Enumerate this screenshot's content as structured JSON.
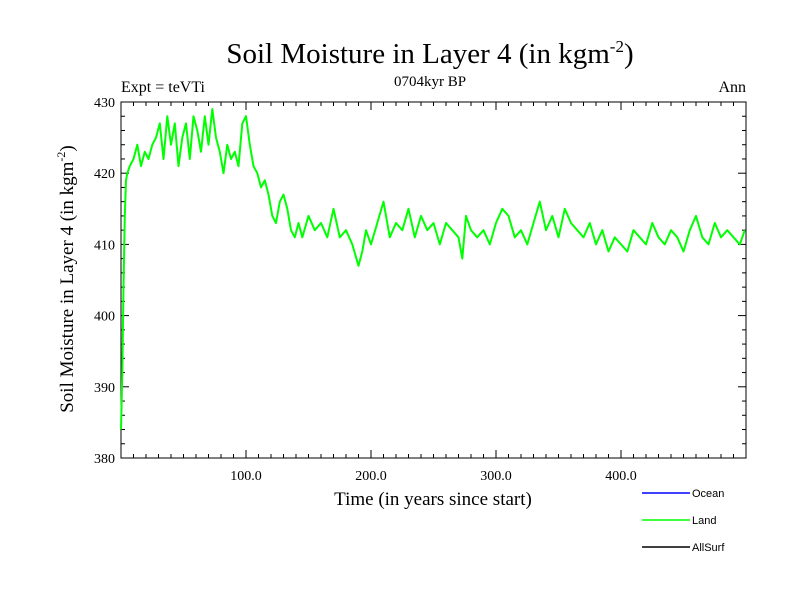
{
  "chart_data": {
    "type": "line",
    "title": "Soil Moisture in Layer 4 (in kgm",
    "title_superscript": "-2",
    "title_close": ")",
    "subtitle_left": "Expt = teVTi",
    "subtitle_center": "0704kyr BP",
    "subtitle_right": "Ann",
    "xlabel": "Time (in years since start)",
    "ylabel": "Soil Moisture in Layer 4 (in kgm",
    "ylabel_superscript": "-2",
    "ylabel_close": ")",
    "xlim": [
      0,
      500
    ],
    "ylim": [
      380,
      430
    ],
    "x_ticks": [
      100,
      200,
      300,
      400
    ],
    "x_tick_labels": [
      "100.0",
      "200.0",
      "300.0",
      "400.0"
    ],
    "y_ticks": [
      380,
      390,
      400,
      410,
      420,
      430
    ],
    "y_tick_labels": [
      "380",
      "390",
      "400",
      "410",
      "420",
      "430"
    ],
    "grid": false,
    "legend_position": "bottom-right",
    "legend": [
      {
        "name": "Ocean",
        "color": "#0000ff"
      },
      {
        "name": "Land",
        "color": "#00ff00"
      },
      {
        "name": "AllSurf",
        "color": "#000000"
      }
    ],
    "series": [
      {
        "name": "Land",
        "color": "#00ff00",
        "x": [
          0,
          1,
          2,
          3,
          4,
          5,
          7,
          10,
          13,
          16,
          19,
          22,
          25,
          28,
          31,
          34,
          37,
          40,
          43,
          46,
          49,
          52,
          55,
          58,
          61,
          64,
          67,
          70,
          73,
          76,
          79,
          82,
          85,
          88,
          91,
          94,
          97,
          100,
          103,
          106,
          109,
          112,
          115,
          118,
          121,
          124,
          127,
          130,
          133,
          136,
          139,
          142,
          145,
          150,
          155,
          160,
          165,
          170,
          175,
          180,
          185,
          190,
          193,
          196,
          200,
          205,
          210,
          215,
          220,
          225,
          230,
          235,
          240,
          245,
          250,
          255,
          260,
          265,
          270,
          273,
          276,
          280,
          285,
          290,
          295,
          300,
          305,
          310,
          315,
          320,
          325,
          330,
          335,
          340,
          345,
          350,
          355,
          360,
          365,
          370,
          375,
          380,
          385,
          390,
          395,
          400,
          405,
          410,
          415,
          420,
          425,
          430,
          435,
          440,
          445,
          450,
          455,
          460,
          465,
          470,
          475,
          480,
          485,
          490,
          495,
          499
        ],
        "y": [
          384,
          392,
          404,
          414,
          419,
          420,
          421,
          422,
          424,
          421,
          423,
          422,
          424,
          425,
          427,
          422,
          428,
          424,
          427,
          421,
          425,
          427,
          422,
          428,
          426,
          423,
          428,
          424,
          429,
          425,
          423,
          420,
          424,
          422,
          423,
          421,
          427,
          428,
          424,
          421,
          420,
          418,
          419,
          417,
          414,
          413,
          416,
          417,
          415,
          412,
          411,
          413,
          411,
          414,
          412,
          413,
          411,
          415,
          411,
          412,
          410,
          407,
          409,
          412,
          410,
          413,
          416,
          411,
          413,
          412,
          415,
          411,
          414,
          412,
          413,
          410,
          413,
          412,
          411,
          408,
          414,
          412,
          411,
          412,
          410,
          413,
          415,
          414,
          411,
          412,
          410,
          413,
          416,
          412,
          414,
          411,
          415,
          413,
          412,
          411,
          413,
          410,
          412,
          409,
          411,
          410,
          409,
          412,
          411,
          410,
          413,
          411,
          410,
          412,
          411,
          409,
          412,
          414,
          411,
          410,
          413,
          411,
          412,
          411,
          410,
          412
        ]
      },
      {
        "name": "Ocean",
        "color": "#0000ff",
        "x": [],
        "y": []
      },
      {
        "name": "AllSurf",
        "color": "#000000",
        "x": [],
        "y": []
      }
    ]
  }
}
